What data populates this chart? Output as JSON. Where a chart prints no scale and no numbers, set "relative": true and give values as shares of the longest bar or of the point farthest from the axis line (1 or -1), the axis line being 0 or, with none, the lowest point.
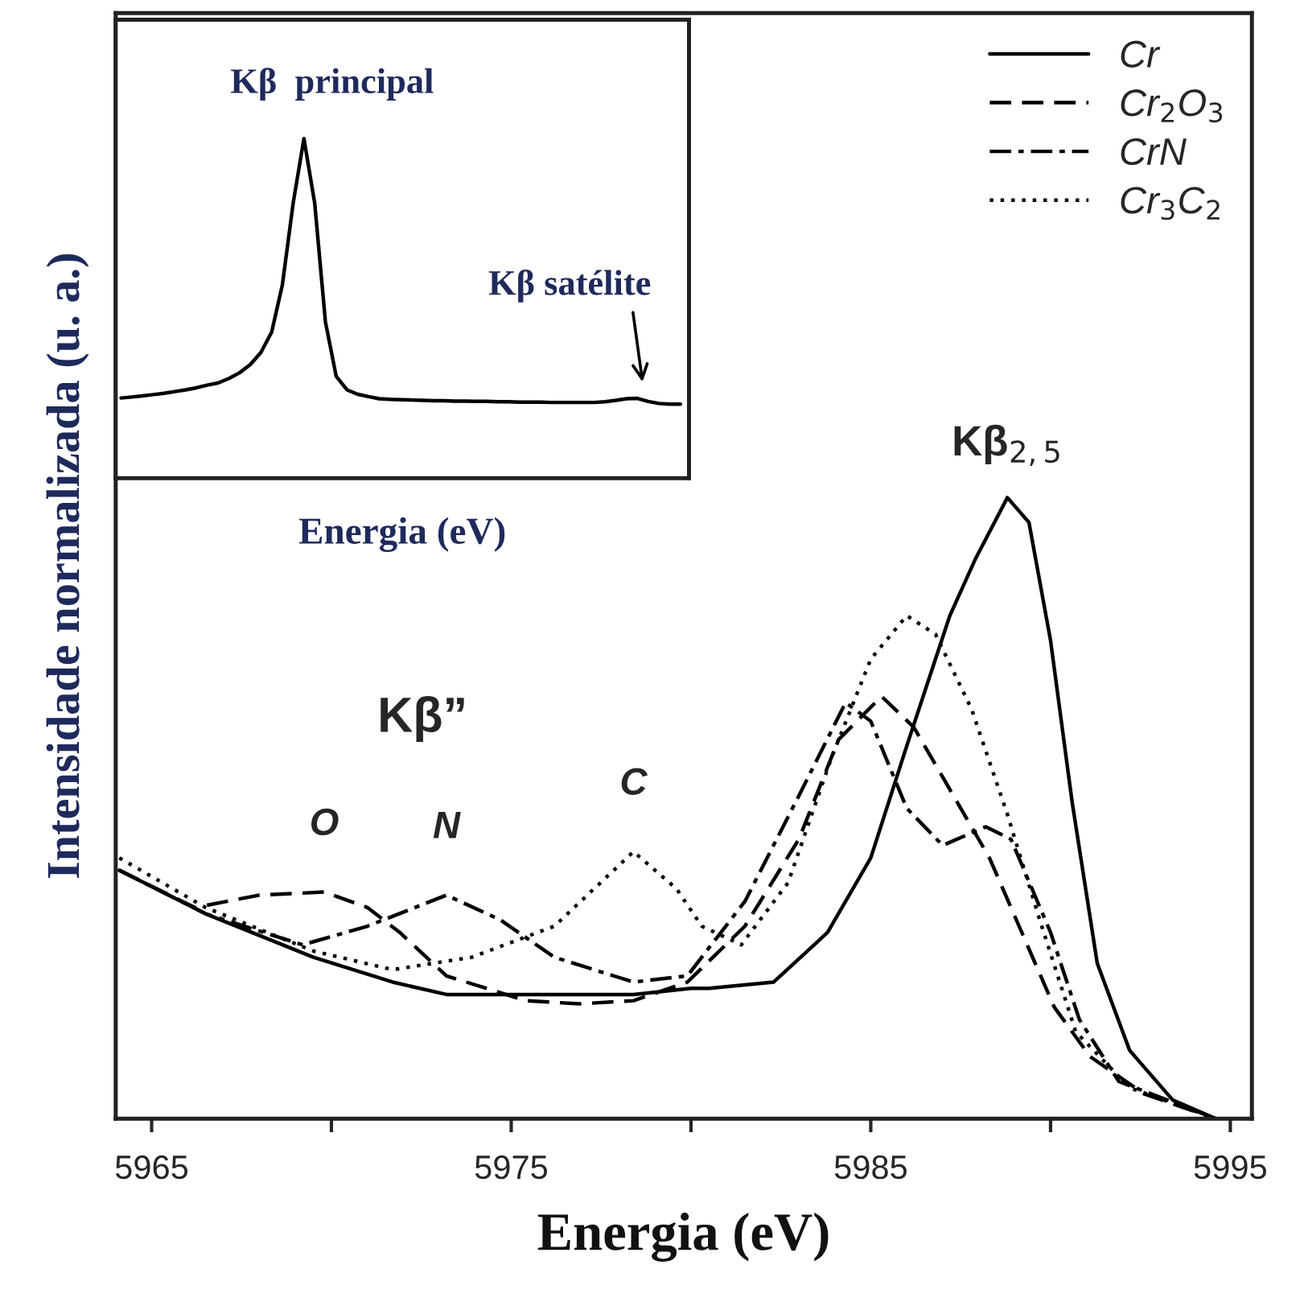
{
  "chart_data": [
    {
      "type": "line",
      "relative": true,
      "xlabel": "Energia (eV)",
      "ylabel": "Intensidade normalizada (u. a.)",
      "xlim": [
        5964,
        5995.6
      ],
      "xticks": [
        5965,
        {
          "value": 5970,
          "label": null
        },
        5975,
        {
          "value": 5980,
          "label": null
        },
        5985,
        {
          "value": 5990,
          "label": null
        },
        5995
      ],
      "legend": "top right",
      "series": [
        {
          "name": "Cr",
          "color": "#000000",
          "line_style": "solid",
          "x": [
            5964.1,
            5966.5,
            5969.5,
            5971.7,
            5973.2,
            5975.4,
            5978.4,
            5980.0,
            5980.5,
            5982.3,
            5983.8,
            5985.0,
            5986.0,
            5987.2,
            5987.9,
            5988.8,
            5989.4,
            5990.0,
            5990.6,
            5991.3,
            5992.2,
            5993.4,
            5994.6,
            5995.0
          ],
          "values": [
            0.4,
            0.33,
            0.26,
            0.22,
            0.2,
            0.2,
            0.2,
            0.21,
            0.21,
            0.22,
            0.3,
            0.42,
            0.6,
            0.81,
            0.9,
            1.0,
            0.96,
            0.77,
            0.51,
            0.25,
            0.11,
            0.03,
            0.0,
            0.0
          ]
        },
        {
          "name": "Cr$_{2}$O$_{3}$",
          "color": "#000000",
          "line_style": "dashed",
          "x": [
            5964.1,
            5966.2,
            5968.0,
            5969.8,
            5971.0,
            5971.9,
            5973.2,
            5975.4,
            5976.9,
            5978.4,
            5979.9,
            5981.5,
            5983.0,
            5984.1,
            5985.3,
            5986.2,
            5987.1,
            5988.3,
            5989.2,
            5990.1,
            5991.1,
            5992.6,
            5994.6,
            5995.0
          ],
          "values": [
            0.4,
            0.34,
            0.36,
            0.365,
            0.34,
            0.3,
            0.23,
            0.19,
            0.185,
            0.19,
            0.22,
            0.31,
            0.45,
            0.61,
            0.68,
            0.63,
            0.54,
            0.42,
            0.3,
            0.18,
            0.1,
            0.04,
            0.0,
            0.0
          ]
        },
        {
          "name": "CrN",
          "color": "#000000",
          "line_style": "dashdot",
          "x": [
            5964.1,
            5966.5,
            5969.2,
            5971.0,
            5973.2,
            5974.7,
            5976.2,
            5978.4,
            5979.9,
            5981.5,
            5983.0,
            5984.3,
            5985.0,
            5986.0,
            5987.0,
            5988.2,
            5988.9,
            5990.0,
            5990.8,
            5991.9,
            5994.6,
            5995.0
          ],
          "values": [
            0.4,
            0.33,
            0.28,
            0.31,
            0.36,
            0.32,
            0.26,
            0.22,
            0.23,
            0.35,
            0.52,
            0.67,
            0.64,
            0.5,
            0.44,
            0.47,
            0.45,
            0.3,
            0.16,
            0.06,
            0.0,
            0.0
          ]
        },
        {
          "name": "Cr$_{3}$C$_{2}$",
          "color": "#000000",
          "line_style": "dotted",
          "x": [
            5964.1,
            5966.5,
            5969.5,
            5971.7,
            5973.9,
            5976.2,
            5978.4,
            5979.6,
            5980.3,
            5981.4,
            5982.7,
            5983.9,
            5985.0,
            5986.0,
            5986.8,
            5987.8,
            5988.8,
            5989.7,
            5990.7,
            5992.2,
            5994.6,
            5995.0
          ],
          "values": [
            0.42,
            0.34,
            0.27,
            0.24,
            0.26,
            0.31,
            0.43,
            0.37,
            0.31,
            0.28,
            0.38,
            0.58,
            0.74,
            0.81,
            0.78,
            0.66,
            0.49,
            0.32,
            0.14,
            0.05,
            0.0,
            0.0
          ]
        }
      ],
      "annotations": [
        {
          "text": "Kβ$_{2,5}$",
          "x": 5988.8,
          "y": 1.0
        },
        {
          "text": "O",
          "x": 5969.8,
          "y": 0.365
        },
        {
          "text": "N",
          "x": 5973.2,
          "y": 0.36
        },
        {
          "text": "C",
          "x": 5978.4,
          "y": 0.43
        },
        "Kβ”"
      ]
    },
    {
      "type": "line",
      "relative": true,
      "xlabel": "Energia (eV)",
      "categories": [
        null,
        null,
        null,
        null,
        null,
        null,
        null,
        null,
        null,
        null,
        null,
        null,
        null,
        null,
        null,
        null,
        null,
        null,
        null,
        null,
        null,
        null,
        null,
        null,
        null,
        null,
        null,
        null,
        null,
        null,
        null,
        null,
        null,
        null,
        null,
        null,
        null,
        null,
        null,
        null,
        null,
        null,
        null,
        null,
        null,
        null,
        null,
        null,
        null,
        null,
        null,
        null,
        null
      ],
      "series": [
        {
          "color": "#000000",
          "values": [
            0.236,
            0.239,
            0.242,
            0.246,
            0.25,
            0.255,
            0.26,
            0.266,
            0.274,
            0.28,
            0.293,
            0.31,
            0.334,
            0.37,
            0.43,
            0.57,
            0.81,
            1.0,
            0.81,
            0.46,
            0.3,
            0.26,
            0.247,
            0.24,
            0.234,
            0.232,
            0.231,
            0.23,
            0.229,
            0.228,
            0.228,
            0.227,
            0.227,
            0.226,
            0.226,
            0.225,
            0.225,
            0.224,
            0.224,
            0.224,
            0.223,
            0.223,
            0.223,
            0.223,
            0.223,
            0.225,
            0.229,
            0.234,
            0.235,
            0.226,
            0.22,
            0.218,
            0.218
          ]
        }
      ],
      "annotations": [
        "Kβ  principal",
        "Kβ satélite"
      ]
    }
  ]
}
